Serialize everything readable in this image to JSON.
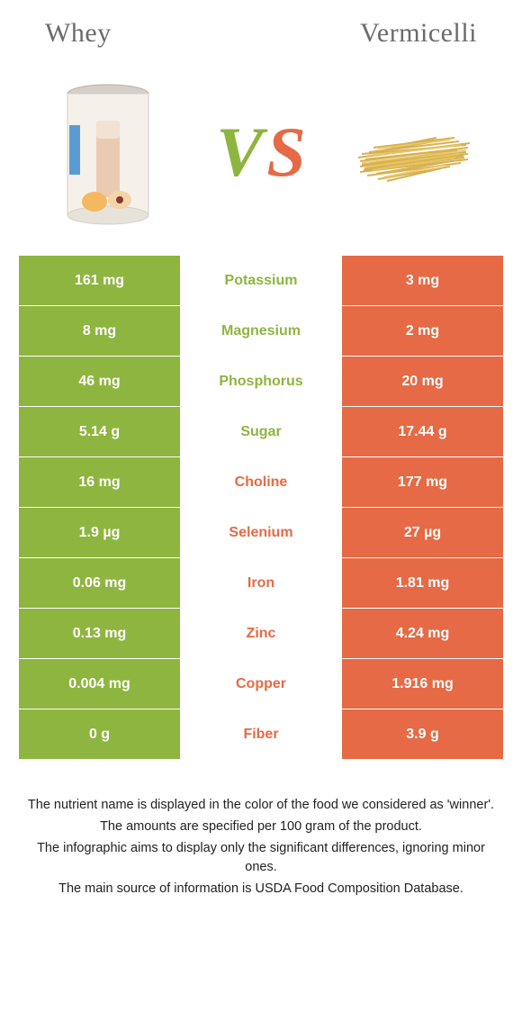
{
  "header": {
    "left_title": "Whey",
    "right_title": "Vermicelli"
  },
  "vs": {
    "v": "V",
    "s": "S"
  },
  "colors": {
    "whey": "#8eb53f",
    "vermicelli": "#e56a45",
    "whey_text": "#8eb53f",
    "vermicelli_text": "#e56a45",
    "header_text": "#6b6b6b",
    "background": "#ffffff"
  },
  "rows": [
    {
      "left": "161 mg",
      "mid": "Potassium",
      "right": "3 mg",
      "winner": "whey"
    },
    {
      "left": "8 mg",
      "mid": "Magnesium",
      "right": "2 mg",
      "winner": "whey"
    },
    {
      "left": "46 mg",
      "mid": "Phosphorus",
      "right": "20 mg",
      "winner": "whey"
    },
    {
      "left": "5.14 g",
      "mid": "Sugar",
      "right": "17.44 g",
      "winner": "whey"
    },
    {
      "left": "16 mg",
      "mid": "Choline",
      "right": "177 mg",
      "winner": "vermicelli"
    },
    {
      "left": "1.9 µg",
      "mid": "Selenium",
      "right": "27 µg",
      "winner": "vermicelli"
    },
    {
      "left": "0.06 mg",
      "mid": "Iron",
      "right": "1.81 mg",
      "winner": "vermicelli"
    },
    {
      "left": "0.13 mg",
      "mid": "Zinc",
      "right": "4.24 mg",
      "winner": "vermicelli"
    },
    {
      "left": "0.004 mg",
      "mid": "Copper",
      "right": "1.916 mg",
      "winner": "vermicelli"
    },
    {
      "left": "0 g",
      "mid": "Fiber",
      "right": "3.9 g",
      "winner": "vermicelli"
    }
  ],
  "footer": {
    "line1": "The nutrient name is displayed in the color of the food we considered as 'winner'.",
    "line2": "The amounts are specified per 100 gram of the product.",
    "line3": "The infographic aims to display only the significant differences, ignoring minor ones.",
    "line4": "The main source of information is USDA Food Composition Database."
  }
}
